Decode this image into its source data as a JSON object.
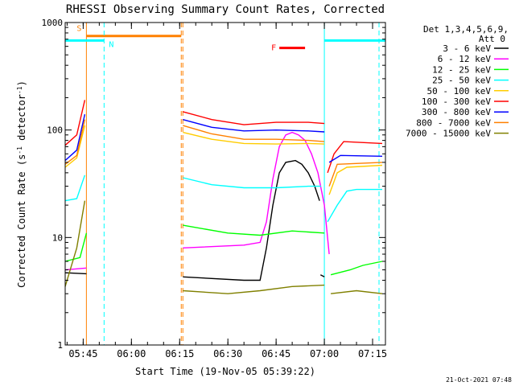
{
  "chart_data": {
    "type": "line",
    "title": "RHESSI Observing Summary Count Rates, Corrected",
    "xlabel": "Start Time (19-Nov-05 05:39:22)",
    "ylabel_main": "Corrected Count Rate (s",
    "ylabel_sup1": "-1",
    "ylabel_mid": " detector",
    "ylabel_sup2": "-1",
    "ylabel_end": ")",
    "yscale": "log",
    "ylim": [
      1,
      1000
    ],
    "xlim_minutes": [
      339.4,
      439.0
    ],
    "x_ticks": [
      {
        "m": 345,
        "label": "05:45"
      },
      {
        "m": 360,
        "label": "06:00"
      },
      {
        "m": 375,
        "label": "06:15"
      },
      {
        "m": 390,
        "label": "06:30"
      },
      {
        "m": 405,
        "label": "06:45"
      },
      {
        "m": 420,
        "label": "07:00"
      },
      {
        "m": 435,
        "label": "07:15"
      }
    ],
    "y_ticks": [
      {
        "v": 1,
        "label": "1"
      },
      {
        "v": 10,
        "label": "10"
      },
      {
        "v": 100,
        "label": "100"
      },
      {
        "v": 1000,
        "label": "1000"
      }
    ],
    "legend": {
      "header1": "Det 1,3,4,5,6,9,",
      "header2": "Att 0",
      "placement": "right"
    },
    "timestamp": "21-Oct-2021 07:48",
    "series": [
      {
        "name": "3 - 6 keV",
        "color": "#000000",
        "segments": [
          [
            [
              339.4,
              4.7
            ],
            [
              346.0,
              4.6
            ]
          ],
          [
            [
              376.0,
              4.3
            ],
            [
              395.0,
              4.0
            ],
            [
              400.0,
              4.0
            ],
            [
              402.0,
              8.0
            ],
            [
              404.0,
              20.0
            ],
            [
              406.0,
              40.0
            ],
            [
              408.0,
              50.0
            ],
            [
              411.0,
              52.0
            ],
            [
              413.0,
              48.0
            ],
            [
              415.0,
              40.0
            ],
            [
              417.0,
              30.0
            ],
            [
              418.5,
              22.0
            ]
          ],
          [
            [
              418.8,
              4.5
            ],
            [
              420.0,
              4.3
            ]
          ]
        ]
      },
      {
        "name": "6 - 12 keV",
        "color": "#ff00ff",
        "segments": [
          [
            [
              339.4,
              5.0
            ],
            [
              346.0,
              5.2
            ]
          ],
          [
            [
              376.0,
              8.0
            ],
            [
              395.0,
              8.5
            ],
            [
              400.0,
              9.0
            ],
            [
              402.0,
              14.0
            ],
            [
              404.0,
              35.0
            ],
            [
              406.0,
              70.0
            ],
            [
              408.0,
              90.0
            ],
            [
              410.0,
              95.0
            ],
            [
              412.0,
              90.0
            ],
            [
              414.0,
              80.0
            ],
            [
              416.0,
              60.0
            ],
            [
              418.0,
              40.0
            ],
            [
              420.0,
              20.0
            ],
            [
              421.5,
              7.0
            ]
          ]
        ]
      },
      {
        "name": "12 - 25 keV",
        "color": "#00ff00",
        "segments": [
          [
            [
              339.4,
              6.0
            ],
            [
              344.0,
              6.5
            ],
            [
              346.0,
              11.0
            ]
          ],
          [
            [
              376.0,
              13.0
            ],
            [
              390.0,
              11.0
            ],
            [
              400.0,
              10.5
            ],
            [
              410.0,
              11.5
            ],
            [
              420.0,
              11.0
            ]
          ],
          [
            [
              422.0,
              4.5
            ],
            [
              428.0,
              5.0
            ],
            [
              432.0,
              5.5
            ],
            [
              438.0,
              6.0
            ]
          ]
        ]
      },
      {
        "name": "25 - 50 keV",
        "color": "#00ffff",
        "segments": [
          [
            [
              339.4,
              22.0
            ],
            [
              343.0,
              23.0
            ],
            [
              345.5,
              38.0
            ]
          ],
          [
            [
              376.0,
              36.0
            ],
            [
              385.0,
              31.0
            ],
            [
              395.0,
              29.0
            ],
            [
              405.0,
              29.0
            ],
            [
              415.0,
              30.0
            ],
            [
              419.0,
              30.0
            ]
          ],
          [
            [
              421.0,
              14.0
            ],
            [
              424.0,
              20.0
            ],
            [
              427.0,
              27.0
            ],
            [
              430.0,
              28.0
            ],
            [
              438.0,
              28.0
            ]
          ]
        ]
      },
      {
        "name": "50 - 100 keV",
        "color": "#ffcc00",
        "segments": [
          [
            [
              339.4,
              45.0
            ],
            [
              343.0,
              55.0
            ],
            [
              345.5,
              110.0
            ]
          ],
          [
            [
              376.0,
              95.0
            ],
            [
              385.0,
              82.0
            ],
            [
              395.0,
              75.0
            ],
            [
              405.0,
              74.0
            ],
            [
              415.0,
              75.0
            ],
            [
              420.0,
              74.0
            ]
          ],
          [
            [
              421.5,
              25.0
            ],
            [
              424.0,
              40.0
            ],
            [
              427.0,
              45.0
            ],
            [
              438.0,
              47.0
            ]
          ]
        ]
      },
      {
        "name": "100 - 300 keV",
        "color": "#ff0000",
        "segments": [
          [
            [
              339.4,
              72.0
            ],
            [
              343.0,
              90.0
            ],
            [
              345.5,
              190.0
            ]
          ],
          [
            [
              376.0,
              148.0
            ],
            [
              385.0,
              125.0
            ],
            [
              395.0,
              112.0
            ],
            [
              405.0,
              118.0
            ],
            [
              415.0,
              118.0
            ],
            [
              420.0,
              115.0
            ]
          ],
          [
            [
              421.0,
              40.0
            ],
            [
              423.0,
              60.0
            ],
            [
              426.0,
              78.0
            ],
            [
              438.0,
              75.0
            ]
          ]
        ]
      },
      {
        "name": "300 - 800 keV",
        "color": "#0000ff",
        "segments": [
          [
            [
              339.4,
              52.0
            ],
            [
              343.0,
              65.0
            ],
            [
              345.5,
              140.0
            ]
          ],
          [
            [
              376.0,
              125.0
            ],
            [
              385.0,
              106.0
            ],
            [
              395.0,
              98.0
            ],
            [
              405.0,
              100.0
            ],
            [
              415.0,
              98.0
            ],
            [
              420.0,
              96.0
            ]
          ],
          [
            [
              421.5,
              50.0
            ],
            [
              425.0,
              58.0
            ],
            [
              438.0,
              57.0
            ]
          ]
        ]
      },
      {
        "name": "800 - 7000 keV",
        "color": "#ff8000",
        "segments": [
          [
            [
              339.4,
              48.0
            ],
            [
              343.0,
              58.0
            ],
            [
              345.5,
              125.0
            ]
          ],
          [
            [
              376.0,
              110.0
            ],
            [
              385.0,
              92.0
            ],
            [
              395.0,
              82.0
            ],
            [
              405.0,
              82.0
            ],
            [
              415.0,
              80.0
            ],
            [
              420.0,
              78.0
            ]
          ],
          [
            [
              421.5,
              30.0
            ],
            [
              424.0,
              48.0
            ],
            [
              438.0,
              50.0
            ]
          ]
        ]
      },
      {
        "name": "7000 - 15000 keV",
        "color": "#808000",
        "segments": [
          [
            [
              339.4,
              3.5
            ],
            [
              343.0,
              8.0
            ],
            [
              345.5,
              22.0
            ]
          ],
          [
            [
              376.0,
              3.2
            ],
            [
              390.0,
              3.0
            ],
            [
              400.0,
              3.2
            ],
            [
              410.0,
              3.5
            ],
            [
              420.0,
              3.6
            ]
          ],
          [
            [
              422.0,
              3.0
            ],
            [
              430.0,
              3.2
            ],
            [
              438.0,
              3.0
            ]
          ]
        ]
      }
    ],
    "annotations": [
      {
        "id": "S",
        "label": "S",
        "color": "#ff8000",
        "x_start": 346.0,
        "x_end": 375.5,
        "y": 750,
        "vlines": [
          346.0,
          375.5
        ]
      },
      {
        "id": "N",
        "label": "N",
        "color": "#00ffff",
        "x_start": 339.4,
        "x_end": 351.5,
        "y": 680,
        "vlines": [
          351.5
        ]
      },
      {
        "id": "F",
        "label": "F",
        "color": "#ff0000",
        "x_start": 406.0,
        "x_end": 414.0,
        "y": 580,
        "vlines": []
      },
      {
        "id": "N2",
        "label": "",
        "color": "#00ffff",
        "x_start": 420.0,
        "x_end": 439.0,
        "y": 680,
        "vlines": [
          420.0,
          437.0
        ]
      },
      {
        "id": "S2",
        "label": "",
        "color": "#ff8000",
        "x_start": 376.0,
        "x_end": 376.0,
        "y": 1,
        "vlines": [
          376.0
        ]
      }
    ]
  }
}
